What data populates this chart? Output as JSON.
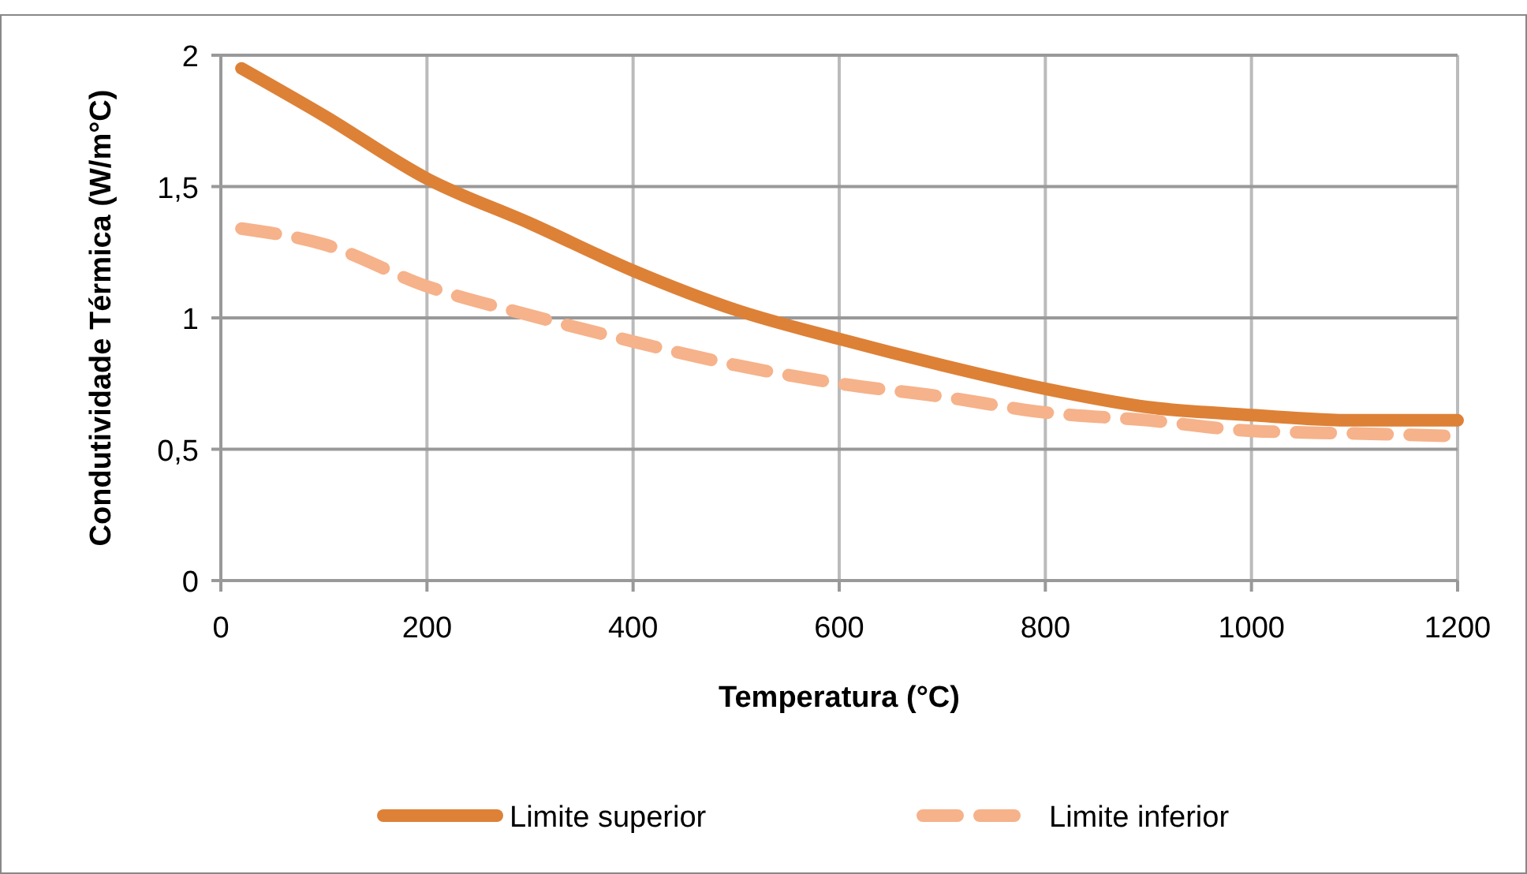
{
  "chart_data": {
    "type": "line",
    "xlabel": "Temperatura (°C)",
    "ylabel": "Condutividade Térmica (W/m°C)",
    "xlim": [
      0,
      1200
    ],
    "xticks": [
      0,
      200,
      400,
      600,
      800,
      1000,
      1200
    ],
    "ylim": [
      0,
      2
    ],
    "yticks": [
      0,
      {
        "value": 0.5,
        "label": "0,5"
      },
      1,
      {
        "value": 1.5,
        "label": "1,5"
      },
      2
    ],
    "grid": true,
    "legend": "bottom",
    "series": [
      {
        "name": "Limite superior",
        "color": "#dd8137",
        "line_style": "solid",
        "x": [
          20,
          100,
          200,
          300,
          400,
          500,
          600,
          700,
          800,
          900,
          1000,
          1100,
          1200
        ],
        "values": [
          1.95,
          1.77,
          1.53,
          1.36,
          1.18,
          1.03,
          0.92,
          0.82,
          0.73,
          0.66,
          0.63,
          0.61,
          0.61
        ]
      },
      {
        "name": "Limite inferior",
        "color": "#f6b28a",
        "line_style": "dashed",
        "x": [
          20,
          100,
          200,
          300,
          400,
          500,
          600,
          700,
          800,
          900,
          1000,
          1100,
          1200
        ],
        "values": [
          1.34,
          1.28,
          1.12,
          1.01,
          0.91,
          0.82,
          0.75,
          0.7,
          0.64,
          0.61,
          0.57,
          0.56,
          0.55
        ]
      }
    ]
  }
}
